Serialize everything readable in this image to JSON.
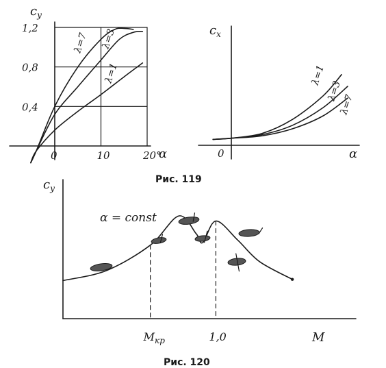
{
  "chart_data": [
    {
      "type": "line",
      "title": "",
      "xlabel": "α",
      "ylabel": "c_y",
      "x_unit": "°",
      "xlim": [
        -5,
        20
      ],
      "ylim": [
        -0.2,
        1.2
      ],
      "x_ticks": [
        {
          "value": 0,
          "label": "0"
        },
        {
          "value": 10,
          "label": "10"
        },
        {
          "value": 20,
          "label": "20°"
        }
      ],
      "y_ticks": [
        {
          "value": 0.4,
          "label": "0,4"
        },
        {
          "value": 0.8,
          "label": "0,8"
        },
        {
          "value": 1.2,
          "label": "1,2"
        }
      ],
      "grid": true,
      "series": [
        {
          "name": "λ=7",
          "points": [
            [
              -4,
              -0.05
            ],
            [
              0,
              0.4
            ],
            [
              5,
              0.8
            ],
            [
              10,
              1.08
            ],
            [
              13,
              1.18
            ],
            [
              15,
              1.19
            ],
            [
              17,
              1.18
            ]
          ]
        },
        {
          "name": "λ=3",
          "points": [
            [
              -4,
              -0.05
            ],
            [
              0,
              0.32
            ],
            [
              5,
              0.6
            ],
            [
              10,
              0.87
            ],
            [
              14,
              1.08
            ],
            [
              17,
              1.15
            ],
            [
              19,
              1.16
            ]
          ]
        },
        {
          "name": "λ=1",
          "points": [
            [
              -4,
              -0.05
            ],
            [
              0,
              0.16
            ],
            [
              5,
              0.35
            ],
            [
              10,
              0.52
            ],
            [
              15,
              0.7
            ],
            [
              19,
              0.84
            ]
          ]
        }
      ]
    },
    {
      "type": "line",
      "title": "",
      "xlabel": "α",
      "ylabel": "c_x",
      "origin_label": "0",
      "xlim": [
        -5,
        20
      ],
      "ylim": [
        0,
        1
      ],
      "grid": false,
      "series": [
        {
          "name": "λ=1",
          "points": [
            [
              -3,
              0.05
            ],
            [
              0,
              0.06
            ],
            [
              5,
              0.1
            ],
            [
              10,
              0.22
            ],
            [
              15,
              0.42
            ],
            [
              18,
              0.6
            ]
          ]
        },
        {
          "name": "λ=3",
          "points": [
            [
              -3,
              0.05
            ],
            [
              0,
              0.06
            ],
            [
              5,
              0.09
            ],
            [
              10,
              0.17
            ],
            [
              15,
              0.32
            ],
            [
              19,
              0.5
            ]
          ]
        },
        {
          "name": "λ=7",
          "points": [
            [
              -3,
              0.05
            ],
            [
              0,
              0.06
            ],
            [
              5,
              0.08
            ],
            [
              10,
              0.14
            ],
            [
              15,
              0.25
            ],
            [
              19,
              0.4
            ]
          ]
        }
      ]
    },
    {
      "type": "line",
      "title": "",
      "xlabel": "M",
      "ylabel": "c_y",
      "annotation": "α = const",
      "x_ticks": [
        {
          "value": 0.7,
          "label": "M",
          "subscript": "кр"
        },
        {
          "value": 1.0,
          "label": "1,0"
        }
      ],
      "xlim": [
        0.3,
        1.5
      ],
      "ylim": [
        0,
        1
      ],
      "series": [
        {
          "name": "",
          "points": [
            [
              0.3,
              0.3
            ],
            [
              0.5,
              0.38
            ],
            [
              0.7,
              0.58
            ],
            [
              0.83,
              0.81
            ],
            [
              0.91,
              0.67
            ],
            [
              0.94,
              0.6
            ],
            [
              1.0,
              0.77
            ],
            [
              1.1,
              0.62
            ],
            [
              1.2,
              0.45
            ],
            [
              1.35,
              0.31
            ]
          ]
        }
      ]
    }
  ],
  "captions": {
    "fig119": "Рис. 119",
    "fig120": "Рис. 120"
  }
}
